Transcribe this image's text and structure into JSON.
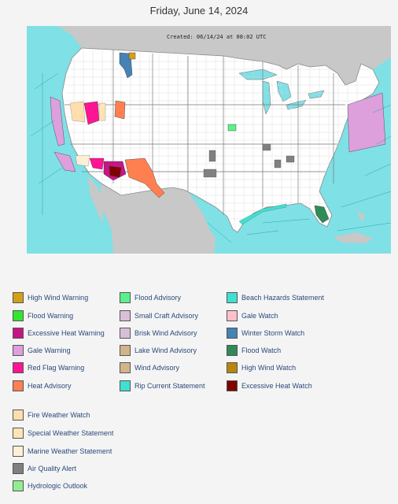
{
  "page": {
    "title": "Friday, June 14, 2024"
  },
  "map": {
    "created_text": "Created: 06/14/24 at 08:02 UTC",
    "colors": {
      "ocean": "#7fe0e6",
      "land": "#ffffff",
      "foreign_land": "#c8c8c8",
      "borders": "#9a9a9a"
    }
  },
  "legend": {
    "columns": [
      [
        {
          "label": "High Wind Warning",
          "color": "#d4a017"
        },
        {
          "label": "Flood Warning",
          "color": "#32e632"
        },
        {
          "label": "Excessive Heat Warning",
          "color": "#c71585"
        },
        {
          "label": "Gale Warning",
          "color": "#dda0dd"
        },
        {
          "label": "Red Flag Warning",
          "color": "#ff1493"
        },
        {
          "label": "Heat Advisory",
          "color": "#ff7f50"
        }
      ],
      [
        {
          "label": "Flood Advisory",
          "color": "#5cf08c"
        },
        {
          "label": "Small Craft Advisory",
          "color": "#d8bfd8"
        },
        {
          "label": "Brisk Wind Advisory",
          "color": "#d8bfd8"
        },
        {
          "label": "Lake Wind Advisory",
          "color": "#d2b48c"
        },
        {
          "label": "Wind Advisory",
          "color": "#d2b48c"
        },
        {
          "label": "Rip Current Statement",
          "color": "#40e0d0"
        }
      ],
      [
        {
          "label": "Beach Hazards Statement",
          "color": "#40e0d0"
        },
        {
          "label": "Gale Watch",
          "color": "#ffc0cb"
        },
        {
          "label": "Winter Storm Watch",
          "color": "#4682b4"
        },
        {
          "label": "Flood Watch",
          "color": "#2e8b57"
        },
        {
          "label": "High Wind Watch",
          "color": "#b8860b"
        },
        {
          "label": "Excessive Heat Watch",
          "color": "#800000"
        }
      ],
      [
        {
          "label": "Fire Weather Watch",
          "color": "#ffdead"
        },
        {
          "label": "Special Weather Statement",
          "color": "#ffe4b5"
        },
        {
          "label": "Marine Weather Statement",
          "color": "#ffefd5"
        },
        {
          "label": "Air Quality Alert",
          "color": "#808080"
        },
        {
          "label": "Hydrologic Outlook",
          "color": "#90ee90"
        }
      ]
    ]
  }
}
